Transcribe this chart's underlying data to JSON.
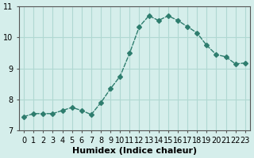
{
  "x": [
    0,
    1,
    2,
    3,
    4,
    5,
    6,
    7,
    8,
    9,
    10,
    11,
    12,
    13,
    14,
    15,
    16,
    17,
    18,
    19,
    20,
    21,
    22,
    23
  ],
  "y": [
    7.45,
    7.55,
    7.55,
    7.55,
    7.65,
    7.75,
    7.65,
    7.52,
    7.9,
    8.35,
    8.75,
    9.5,
    10.35,
    10.7,
    10.55,
    10.7,
    10.55,
    10.35,
    10.15,
    9.75,
    9.45,
    9.38,
    9.15,
    9.18
  ],
  "line_color": "#2e7d6e",
  "marker": "D",
  "marker_size": 3,
  "bg_color": "#d5eeeb",
  "grid_color": "#b0d8d2",
  "axes_color": "#555555",
  "xlabel": "Humidex (Indice chaleur)",
  "ylabel": "",
  "title": "",
  "ylim": [
    7,
    11
  ],
  "xlim": [
    -0.5,
    23.5
  ],
  "yticks": [
    7,
    8,
    9,
    10,
    11
  ],
  "xticks": [
    0,
    1,
    2,
    3,
    4,
    5,
    6,
    7,
    8,
    9,
    10,
    11,
    12,
    13,
    14,
    15,
    16,
    17,
    18,
    19,
    20,
    21,
    22,
    23
  ],
  "xlabel_fontsize": 8,
  "tick_fontsize": 7
}
